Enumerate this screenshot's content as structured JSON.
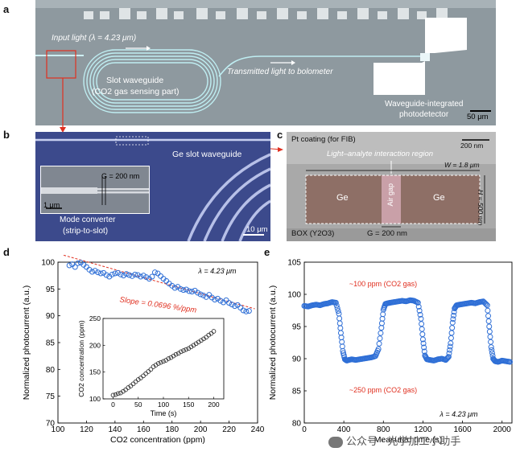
{
  "figure": {
    "panel_labels": [
      "a",
      "b",
      "c",
      "d",
      "e"
    ]
  },
  "panel_a": {
    "input_light": "Input light (λ = 4.23 μm)",
    "slot_waveguide_l1": "Slot waveguide",
    "slot_waveguide_l2": "(CO2 gas sensing part)",
    "transmitted": "Transmitted light to bolometer",
    "detector_l1": "Waveguide-integrated",
    "detector_l2": "photodetector",
    "scale": "50 μm"
  },
  "panel_b": {
    "ge_slot": "Ge slot waveguide",
    "gap": "G = 200 nm",
    "inset_scale": "1 μm",
    "mode_conv_l1": "Mode converter",
    "mode_conv_l2": "(strip-to-slot)",
    "scale": "10 μm"
  },
  "panel_c": {
    "pt": "Pt coating (for FIB)",
    "scale": "200 nm",
    "interaction": "Light–analyte interaction region",
    "w": "W = 1.8 μm",
    "h": "H = 500 nm",
    "ge_left": "Ge",
    "ge_right": "Ge",
    "air_gap": "Air gap",
    "box": "BOX (Y2O3)",
    "g": "G = 200 nm"
  },
  "chart_data": [
    {
      "type": "scatter",
      "panel": "d",
      "xlabel": "CO2 concentration (ppm)",
      "ylabel": "Normalized photocurrent (a.u.)",
      "xlim": [
        100,
        240
      ],
      "ylim": [
        70,
        100
      ],
      "xticks": [
        "100",
        "120",
        "140",
        "160",
        "180",
        "200",
        "220",
        "240"
      ],
      "yticks": [
        "70",
        "75",
        "80",
        "85",
        "90",
        "95",
        "100"
      ],
      "annotation": "λ = 4.23 μm",
      "fit_label": "Slope = 0.0696 %/ppm",
      "fit": {
        "x": [
          104,
          238
        ],
        "y": [
          101.3,
          91.3
        ]
      },
      "x": [
        108,
        110,
        112,
        114,
        116,
        118,
        120,
        122,
        124,
        126,
        128,
        130,
        132,
        134,
        136,
        138,
        140,
        142,
        144,
        146,
        148,
        150,
        152,
        154,
        156,
        158,
        160,
        162,
        164,
        166,
        168,
        170,
        172,
        174,
        176,
        178,
        180,
        182,
        184,
        186,
        188,
        190,
        192,
        194,
        196,
        198,
        200,
        202,
        204,
        206,
        208,
        210,
        212,
        214,
        216,
        218,
        220,
        222,
        224,
        226,
        228,
        230,
        232,
        234
      ],
      "y": [
        99.4,
        99.6,
        99.1,
        99.8,
        99.9,
        99.5,
        99.1,
        98.6,
        98.2,
        98.4,
        98.1,
        97.9,
        98.0,
        97.6,
        97.3,
        97.7,
        97.9,
        98.0,
        97.7,
        97.5,
        97.8,
        97.6,
        97.4,
        97.7,
        97.6,
        97.3,
        97.5,
        97.2,
        96.9,
        97.3,
        98.1,
        97.9,
        97.4,
        96.9,
        96.5,
        96.0,
        95.6,
        95.2,
        95.4,
        95.0,
        94.8,
        94.9,
        94.6,
        94.5,
        94.7,
        94.3,
        94.0,
        93.8,
        93.5,
        93.9,
        93.4,
        93.0,
        93.2,
        92.8,
        92.5,
        92.9,
        92.4,
        92.1,
        91.8,
        92.0,
        91.5,
        91.0,
        90.8,
        90.9
      ],
      "inset": {
        "xlabel": "Time (s)",
        "ylabel": "CO2 concentration (ppm)",
        "xlim": [
          -20,
          220
        ],
        "ylim": [
          100,
          250
        ],
        "xticks": [
          "0",
          "50",
          "100",
          "150",
          "200"
        ],
        "yticks": [
          "100",
          "150",
          "200",
          "250"
        ],
        "x": [
          0,
          5,
          10,
          15,
          20,
          25,
          30,
          35,
          40,
          45,
          50,
          55,
          60,
          65,
          70,
          75,
          80,
          85,
          90,
          95,
          100,
          105,
          110,
          115,
          120,
          125,
          130,
          135,
          140,
          145,
          150,
          155,
          160,
          165,
          170,
          175,
          180,
          185,
          190,
          195,
          200
        ],
        "y": [
          107,
          108,
          110,
          111,
          114,
          117,
          121,
          124,
          128,
          132,
          136,
          139,
          143,
          147,
          151,
          155,
          160,
          163,
          166,
          168,
          170,
          172,
          175,
          177,
          180,
          183,
          185,
          188,
          190,
          192,
          194,
          197,
          200,
          203,
          206,
          209,
          212,
          215,
          219,
          222,
          226
        ]
      }
    },
    {
      "type": "scatter",
      "panel": "e",
      "xlabel": "Measured time (s)",
      "ylabel": "Normalized photocurrent (a.u.)",
      "xlim": [
        0,
        2100
      ],
      "ylim": [
        80,
        105
      ],
      "xticks": [
        "0",
        "400",
        "800",
        "1200",
        "1600",
        "2000"
      ],
      "yticks": [
        "80",
        "85",
        "90",
        "95",
        "100",
        "105"
      ],
      "annotation": "λ = 4.23 μm",
      "label_top": "~100 ppm (CO2 gas)",
      "label_bottom": "~250 ppm (CO2 gas)",
      "x": [
        0,
        40,
        80,
        120,
        160,
        200,
        240,
        280,
        320,
        350,
        370,
        390,
        410,
        430,
        450,
        480,
        520,
        560,
        600,
        640,
        680,
        720,
        750,
        780,
        800,
        820,
        840,
        870,
        910,
        950,
        990,
        1030,
        1070,
        1110,
        1150,
        1180,
        1200,
        1220,
        1240,
        1270,
        1310,
        1350,
        1390,
        1430,
        1460,
        1480,
        1500,
        1520,
        1540,
        1570,
        1610,
        1650,
        1690,
        1730,
        1770,
        1810,
        1850,
        1870,
        1890,
        1910,
        1930,
        1960,
        2000,
        2040,
        2080
      ],
      "y": [
        98.2,
        98.1,
        98.3,
        98.4,
        98.3,
        98.5,
        98.6,
        98.8,
        98.7,
        97.0,
        94.0,
        91.2,
        89.9,
        89.7,
        89.8,
        89.9,
        89.8,
        89.9,
        90.0,
        90.1,
        90.2,
        90.4,
        91.5,
        94.8,
        97.6,
        98.5,
        98.6,
        98.7,
        98.8,
        98.9,
        99.0,
        98.9,
        99.1,
        99.0,
        98.7,
        96.2,
        93.0,
        90.5,
        89.9,
        89.8,
        89.7,
        89.9,
        90.0,
        89.8,
        90.3,
        92.4,
        95.6,
        97.8,
        98.3,
        98.4,
        98.5,
        98.6,
        98.7,
        98.6,
        98.8,
        98.9,
        98.3,
        95.0,
        91.8,
        90.0,
        89.6,
        89.5,
        89.7,
        89.6,
        89.5
      ]
    }
  ],
  "watermark": "公众号 · 光学加工小助手"
}
